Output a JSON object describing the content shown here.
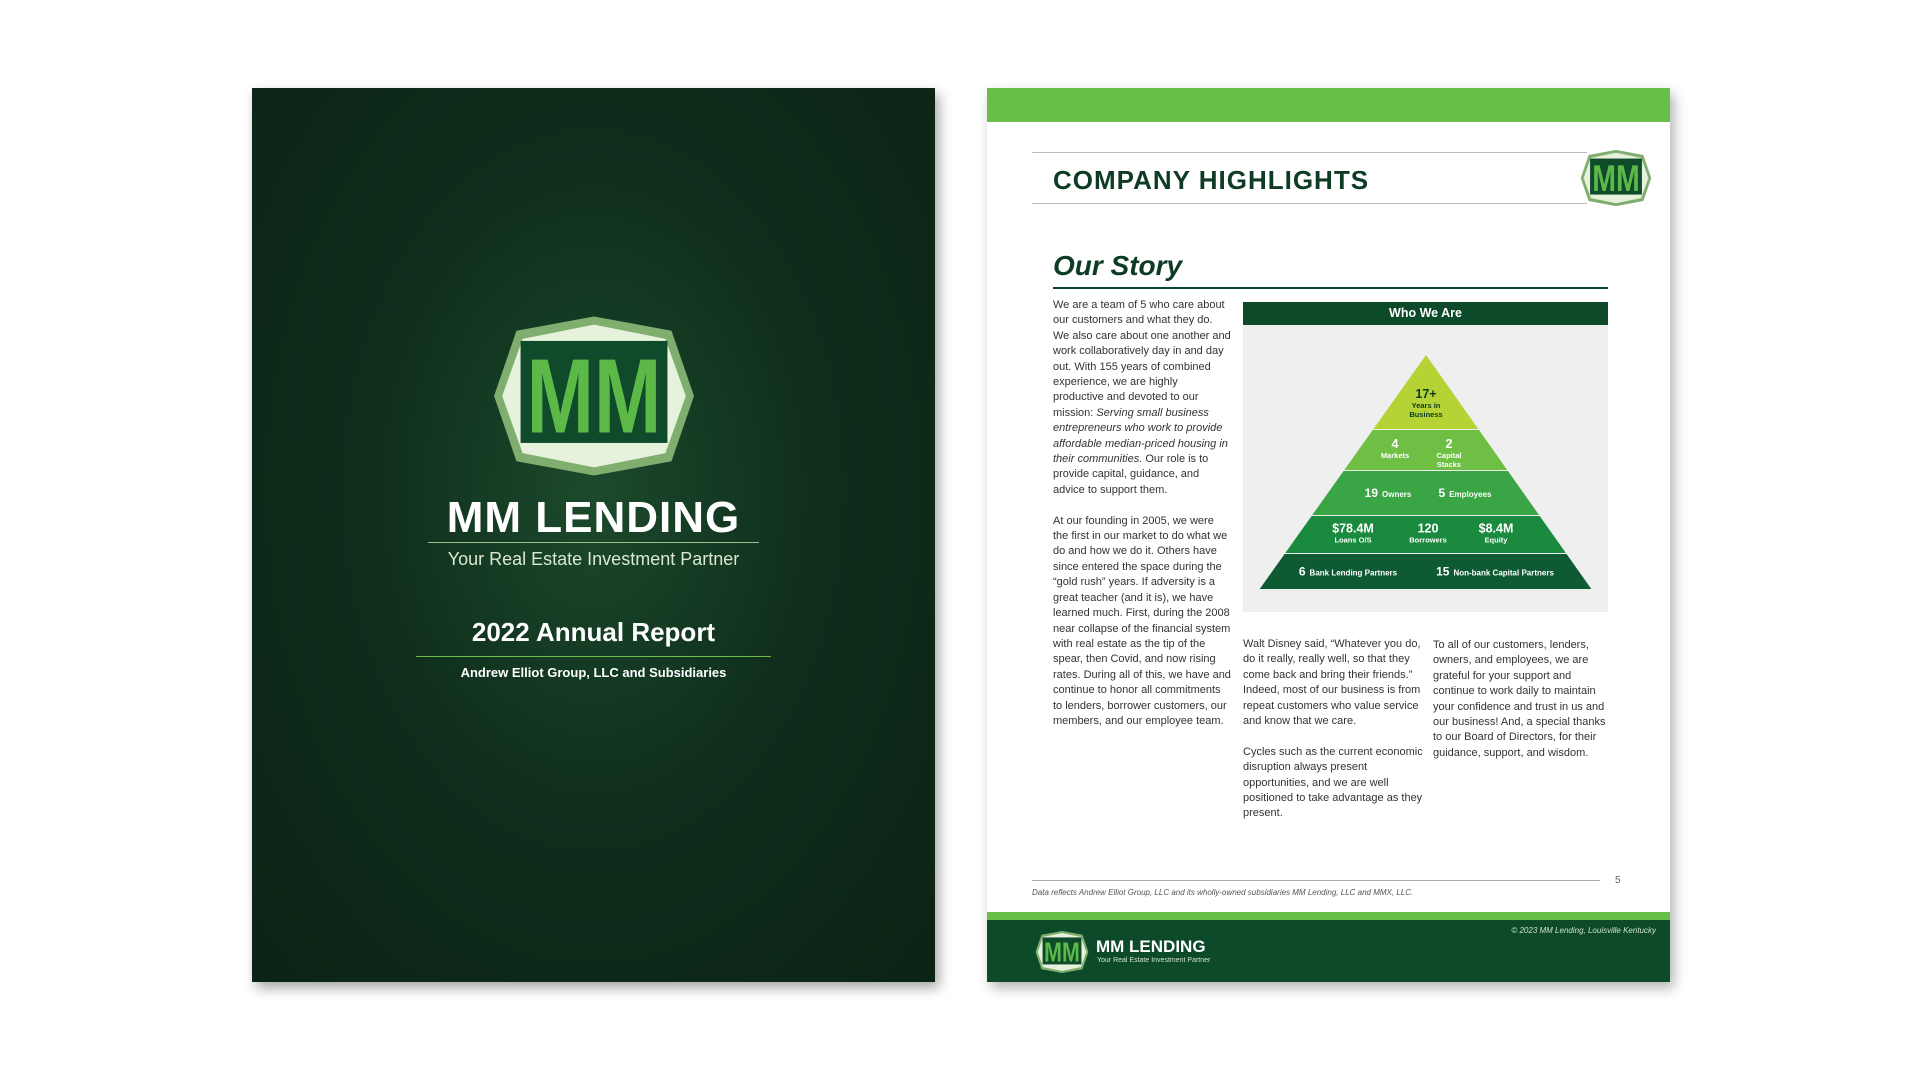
{
  "cover": {
    "logo": "MM",
    "brand": "MM LENDING",
    "tagline": "Your Real Estate Investment Partner",
    "report_title": "2022 Annual Report",
    "subtitle": "Andrew Elliot Group, LLC and Subsidiaries"
  },
  "page": {
    "heading": "COMPANY HIGHLIGHTS",
    "logo": "MM",
    "section_title": "Our Story",
    "column_1": [
      [
        "We are a team of 5 who care about our customers and what they do. We also care about one another and work collaboratively day in and day out. With 155 years of combined experience, we are highly productive and devoted to our mission: ",
        "Serving small business entrepreneurs who work to provide affordable median-priced housing in their communities.",
        " Our role is to provide capital, guidance, and advice to support them."
      ],
      [
        "At our founding in 2005, we were the first in our market to do what we do and how we do it. Others have since entered the space during the “gold rush” years. If adversity is a great teacher (and it is), we have learned much. First, during the 2008 near collapse of the financial system with real estate as the tip of the spear, then Covid, and now rising rates. During all of this, we have and continue to honor all commitments to lenders, borrower customers, our members, and our employee team."
      ]
    ],
    "infographic": {
      "title": "Who We Are",
      "tiers": [
        [
          {
            "value": "17+",
            "label": "Years in Business"
          }
        ],
        [
          {
            "value": "4",
            "label": "Markets"
          },
          {
            "value": "2",
            "label": "Capital Stacks"
          }
        ],
        [
          {
            "value": "19",
            "label": "Owners"
          },
          {
            "value": "5",
            "label": "Employees"
          }
        ],
        [
          {
            "value": "$78.4M",
            "label": "Loans O/S"
          },
          {
            "value": "120",
            "label": "Borrowers"
          },
          {
            "value": "$8.4M",
            "label": "Equity"
          }
        ],
        [
          {
            "value": "6",
            "label": "Bank Lending Partners"
          },
          {
            "value": "15",
            "label": "Non-bank Capital Partners"
          }
        ]
      ]
    },
    "column_2": [
      "Walt Disney said, “Whatever you do, do it really, really well, so that they come back and bring their friends.” Indeed, most of our business is from repeat customers who value service and know that we care.",
      "Cycles such as the current economic disruption always present opportunities, and we are well positioned to take advantage as they present."
    ],
    "column_3": [
      "To all of our customers, lenders, owners, and employees, we are grateful for your support and continue to work daily to maintain your confidence and trust in us and our business!  And, a special thanks to our Board of Directors, for their guidance, support, and wisdom."
    ],
    "page_number": "5",
    "footnote": "Data reflects Andrew Elliot Group, LLC and its wholly-owned subsidiaries MM Lending, LLC and MMX, LLC.",
    "footer": {
      "logo": "MM",
      "brand": "MM LENDING",
      "tagline": "Your Real Estate Investment Partner",
      "copyright": "© 2023 MM Lending, Louisville Kentucky"
    }
  }
}
